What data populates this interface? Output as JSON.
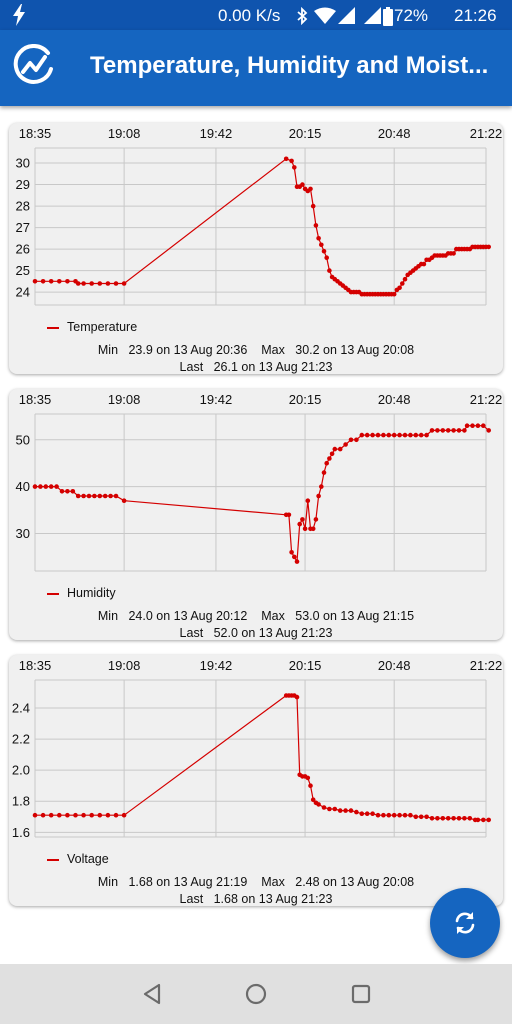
{
  "status_bar": {
    "speed": "0.00 K/s",
    "battery": "72%",
    "time": "21:26",
    "icons": [
      "bolt-icon",
      "bluetooth-icon",
      "wifi-icon",
      "signal-icon",
      "signal-roaming-icon",
      "battery-icon"
    ]
  },
  "app_bar": {
    "title": "Temperature, Humidity and Moist...",
    "logo_icon": "chart-logo-icon"
  },
  "colors": {
    "series": "#d40000",
    "app_bar": "#1565c0",
    "card": "#f0f0f0",
    "grid": "#c8c8c8"
  },
  "fab": {
    "icon": "refresh-icon"
  },
  "nav_bar": {
    "icons": [
      "back-icon",
      "home-icon",
      "recents-icon"
    ]
  },
  "chart_data": [
    {
      "type": "line",
      "x_tick_labels": [
        "18:35",
        "19:08",
        "19:42",
        "20:15",
        "20:48",
        "21:22"
      ],
      "xlim": [
        "18:35",
        "21:22"
      ],
      "ylim": [
        23.4,
        30.7
      ],
      "y_ticks": [
        24,
        25,
        26,
        27,
        28,
        29,
        30
      ],
      "y_tick_labels": [
        "24",
        "25",
        "26",
        "27",
        "28",
        "29",
        "30"
      ],
      "grid": true,
      "legend_position": "bottom-left",
      "series": [
        {
          "name": "Temperature",
          "x": [
            "18:35",
            "18:38",
            "18:41",
            "18:44",
            "18:47",
            "18:50",
            "18:51",
            "18:53",
            "18:56",
            "18:59",
            "19:02",
            "19:05",
            "19:08",
            "20:08",
            "20:10",
            "20:11",
            "20:12",
            "20:13",
            "20:14",
            "20:15",
            "20:16",
            "20:17",
            "20:18",
            "20:19",
            "20:20",
            "20:21",
            "20:22",
            "20:23",
            "20:24",
            "20:25",
            "20:26",
            "20:27",
            "20:28",
            "20:29",
            "20:30",
            "20:31",
            "20:32",
            "20:33",
            "20:34",
            "20:35",
            "20:36",
            "20:37",
            "20:38",
            "20:39",
            "20:40",
            "20:41",
            "20:42",
            "20:43",
            "20:44",
            "20:45",
            "20:46",
            "20:47",
            "20:48",
            "20:49",
            "20:50",
            "20:51",
            "20:52",
            "20:53",
            "20:54",
            "20:55",
            "20:56",
            "20:57",
            "20:58",
            "20:59",
            "21:00",
            "21:01",
            "21:02",
            "21:03",
            "21:04",
            "21:05",
            "21:06",
            "21:07",
            "21:08",
            "21:09",
            "21:10",
            "21:11",
            "21:12",
            "21:13",
            "21:14",
            "21:15",
            "21:16",
            "21:17",
            "21:18",
            "21:19",
            "21:20",
            "21:21",
            "21:22",
            "21:23"
          ],
          "y": [
            24.5,
            24.5,
            24.5,
            24.5,
            24.5,
            24.5,
            24.4,
            24.4,
            24.4,
            24.4,
            24.4,
            24.4,
            24.4,
            30.2,
            30.1,
            29.8,
            28.9,
            28.9,
            29.0,
            28.8,
            28.7,
            28.8,
            28.0,
            27.1,
            26.5,
            26.2,
            25.9,
            25.6,
            25.0,
            24.7,
            24.6,
            24.5,
            24.4,
            24.3,
            24.2,
            24.1,
            24.0,
            24.0,
            24.0,
            24.0,
            23.9,
            23.9,
            23.9,
            23.9,
            23.9,
            23.9,
            23.9,
            23.9,
            23.9,
            23.9,
            23.9,
            23.9,
            23.9,
            24.1,
            24.2,
            24.4,
            24.6,
            24.8,
            24.9,
            25.0,
            25.1,
            25.2,
            25.3,
            25.3,
            25.5,
            25.5,
            25.6,
            25.7,
            25.7,
            25.7,
            25.7,
            25.7,
            25.8,
            25.8,
            25.8,
            26.0,
            26.0,
            26.0,
            26.0,
            26.0,
            26.0,
            26.1,
            26.1,
            26.1,
            26.1,
            26.1,
            26.1,
            26.1
          ]
        }
      ],
      "stats_line1": "Min   23.9 on 13 Aug 20:36    Max   30.2 on 13 Aug 20:08",
      "stats_line2": "Last   26.1 on 13 Aug 21:23"
    },
    {
      "type": "line",
      "x_tick_labels": [
        "18:35",
        "19:08",
        "19:42",
        "20:15",
        "20:48",
        "21:22"
      ],
      "xlim": [
        "18:35",
        "21:22"
      ],
      "ylim": [
        22.0,
        55.5
      ],
      "y_ticks": [
        30,
        40,
        50
      ],
      "y_tick_labels": [
        "30",
        "40",
        "50"
      ],
      "grid": true,
      "legend_position": "bottom-left",
      "series": [
        {
          "name": "Humidity",
          "x": [
            "18:35",
            "18:37",
            "18:39",
            "18:41",
            "18:43",
            "18:45",
            "18:47",
            "18:49",
            "18:51",
            "18:53",
            "18:55",
            "18:57",
            "18:59",
            "19:01",
            "19:03",
            "19:05",
            "19:08",
            "20:08",
            "20:09",
            "20:10",
            "20:11",
            "20:12",
            "20:13",
            "20:14",
            "20:15",
            "20:16",
            "20:17",
            "20:18",
            "20:19",
            "20:20",
            "20:21",
            "20:22",
            "20:23",
            "20:24",
            "20:25",
            "20:26",
            "20:28",
            "20:30",
            "20:32",
            "20:34",
            "20:36",
            "20:38",
            "20:40",
            "20:42",
            "20:44",
            "20:46",
            "20:48",
            "20:50",
            "20:52",
            "20:54",
            "20:56",
            "20:58",
            "21:00",
            "21:02",
            "21:04",
            "21:06",
            "21:08",
            "21:10",
            "21:12",
            "21:14",
            "21:15",
            "21:17",
            "21:19",
            "21:21",
            "21:23"
          ],
          "y": [
            40,
            40,
            40,
            40,
            40,
            39,
            39,
            39,
            38,
            38,
            38,
            38,
            38,
            38,
            38,
            38,
            37,
            34,
            34,
            26,
            25,
            24,
            32,
            33,
            31,
            37,
            31,
            31,
            33,
            38,
            40,
            43,
            45,
            46,
            47,
            48,
            48,
            49,
            50,
            50,
            51,
            51,
            51,
            51,
            51,
            51,
            51,
            51,
            51,
            51,
            51,
            51,
            51,
            52,
            52,
            52,
            52,
            52,
            52,
            52,
            53,
            53,
            53,
            53,
            52
          ]
        }
      ],
      "stats_line1": "Min   24.0 on 13 Aug 20:12    Max   53.0 on 13 Aug 21:15",
      "stats_line2": "Last   52.0 on 13 Aug 21:23"
    },
    {
      "type": "line",
      "x_tick_labels": [
        "18:35",
        "19:08",
        "19:42",
        "20:15",
        "20:48",
        "21:22"
      ],
      "xlim": [
        "18:35",
        "21:22"
      ],
      "ylim": [
        1.57,
        2.58
      ],
      "y_ticks": [
        1.6,
        1.8,
        2.0,
        2.2,
        2.4
      ],
      "y_tick_labels": [
        "1.6",
        "1.8",
        "2.0",
        "2.2",
        "2.4"
      ],
      "grid": true,
      "legend_position": "bottom-left",
      "series": [
        {
          "name": "Voltage",
          "x": [
            "18:35",
            "18:38",
            "18:41",
            "18:44",
            "18:47",
            "18:50",
            "18:53",
            "18:56",
            "18:59",
            "19:02",
            "19:05",
            "19:08",
            "20:08",
            "20:09",
            "20:10",
            "20:11",
            "20:12",
            "20:13",
            "20:14",
            "20:15",
            "20:16",
            "20:17",
            "20:18",
            "20:19",
            "20:20",
            "20:22",
            "20:24",
            "20:26",
            "20:28",
            "20:30",
            "20:32",
            "20:34",
            "20:36",
            "20:38",
            "20:40",
            "20:42",
            "20:44",
            "20:46",
            "20:48",
            "20:50",
            "20:52",
            "20:54",
            "20:56",
            "20:58",
            "21:00",
            "21:02",
            "21:04",
            "21:06",
            "21:08",
            "21:10",
            "21:12",
            "21:14",
            "21:16",
            "21:18",
            "21:19",
            "21:21",
            "21:23"
          ],
          "y": [
            1.71,
            1.71,
            1.71,
            1.71,
            1.71,
            1.71,
            1.71,
            1.71,
            1.71,
            1.71,
            1.71,
            1.71,
            2.48,
            2.48,
            2.48,
            2.48,
            2.47,
            1.97,
            1.96,
            1.96,
            1.95,
            1.9,
            1.81,
            1.79,
            1.78,
            1.76,
            1.75,
            1.75,
            1.74,
            1.74,
            1.74,
            1.73,
            1.72,
            1.72,
            1.72,
            1.71,
            1.71,
            1.71,
            1.71,
            1.71,
            1.71,
            1.71,
            1.7,
            1.7,
            1.7,
            1.69,
            1.69,
            1.69,
            1.69,
            1.69,
            1.69,
            1.69,
            1.69,
            1.68,
            1.68,
            1.68,
            1.68
          ]
        }
      ],
      "stats_line1": "Min   1.68 on 13 Aug 21:19    Max   2.48 on 13 Aug 20:08",
      "stats_line2": "Last   1.68 on 13 Aug 21:23"
    }
  ]
}
